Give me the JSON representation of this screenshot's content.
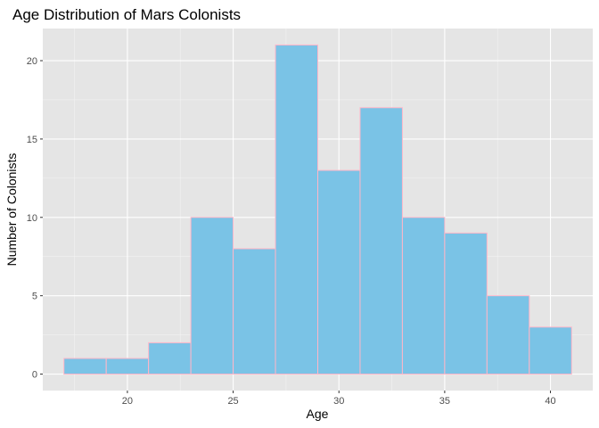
{
  "chart_data": {
    "type": "bar",
    "title": "Age Distribution of Mars Colonists",
    "xlabel": "Age",
    "ylabel": "Number of Colonists",
    "bin_width": 2,
    "bins": [
      {
        "x0": 17,
        "x1": 19,
        "count": 1
      },
      {
        "x0": 19,
        "x1": 21,
        "count": 1
      },
      {
        "x0": 21,
        "x1": 23,
        "count": 2
      },
      {
        "x0": 23,
        "x1": 25,
        "count": 10
      },
      {
        "x0": 25,
        "x1": 27,
        "count": 8
      },
      {
        "x0": 27,
        "x1": 29,
        "count": 21
      },
      {
        "x0": 29,
        "x1": 31,
        "count": 13
      },
      {
        "x0": 31,
        "x1": 33,
        "count": 17
      },
      {
        "x0": 33,
        "x1": 35,
        "count": 10
      },
      {
        "x0": 35,
        "x1": 37,
        "count": 9
      },
      {
        "x0": 37,
        "x1": 39,
        "count": 5
      },
      {
        "x0": 39,
        "x1": 41,
        "count": 3
      }
    ],
    "xlim": [
      16,
      42
    ],
    "ylim": [
      -1.05,
      22.05
    ],
    "x_ticks": [
      20,
      25,
      30,
      35,
      40
    ],
    "x_tick_labels": [
      "20",
      "25",
      "30",
      "35",
      "40"
    ],
    "y_ticks": [
      0,
      5,
      10,
      15,
      20
    ],
    "y_tick_labels": [
      "0",
      "5",
      "10",
      "15",
      "20"
    ],
    "grid": true,
    "legend": "none",
    "colors": {
      "bar_fill": "#7AC3E6",
      "bar_outline": "#FFB6C8",
      "panel_background": "#E5E5E5",
      "grid_major": "#FFFFFF",
      "grid_minor": "#F2F2F2",
      "tick_text": "#4D4D4D"
    }
  }
}
